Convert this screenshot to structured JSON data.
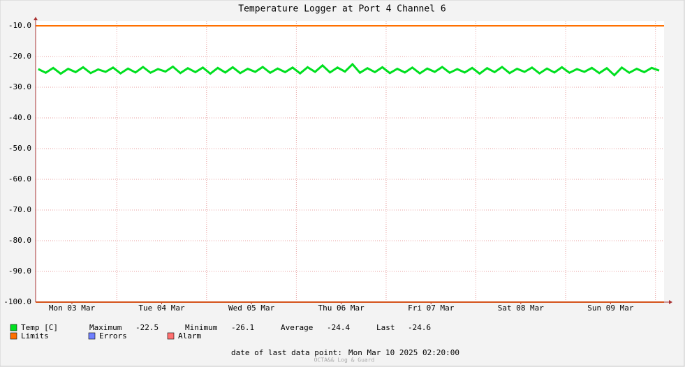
{
  "chart_data": {
    "type": "line",
    "title": "Temperature Logger at Port 4 Channel 6",
    "xlim": [
      2.3,
      170.3
    ],
    "xticks": [
      {
        "value": 12,
        "label": "Mon 03 Mar"
      },
      {
        "value": 36,
        "label": "Tue 04 Mar"
      },
      {
        "value": 60,
        "label": "Wed 05 Mar"
      },
      {
        "value": 84,
        "label": "Thu 06 Mar"
      },
      {
        "value": 108,
        "label": "Fri 07 Mar"
      },
      {
        "value": 132,
        "label": "Sat 08 Mar"
      },
      {
        "value": 156,
        "label": "Sun 09 Mar"
      }
    ],
    "x_major_grid": [
      24,
      48,
      72,
      96,
      120,
      144,
      168
    ],
    "ylim": [
      -100,
      -10
    ],
    "yticks": [
      {
        "value": -10,
        "label": "-10.0"
      },
      {
        "value": -20,
        "label": "-20.0"
      },
      {
        "value": -30,
        "label": "-30.0"
      },
      {
        "value": -40,
        "label": "-40.0"
      },
      {
        "value": -50,
        "label": "-50.0"
      },
      {
        "value": -60,
        "label": "-60.0"
      },
      {
        "value": -70,
        "label": "-70.0"
      },
      {
        "value": -80,
        "label": "-80.0"
      },
      {
        "value": -90,
        "label": "-90.0"
      },
      {
        "value": -100,
        "label": "-100.0"
      }
    ],
    "grid": true,
    "x": [
      3,
      5,
      7,
      9,
      11,
      13,
      15,
      17,
      19,
      21,
      23,
      25,
      27,
      29,
      31,
      33,
      35,
      37,
      39,
      41,
      43,
      45,
      47,
      49,
      51,
      53,
      55,
      57,
      59,
      61,
      63,
      65,
      67,
      69,
      71,
      73,
      75,
      77,
      79,
      81,
      83,
      85,
      87,
      89,
      91,
      93,
      95,
      97,
      99,
      101,
      103,
      105,
      107,
      109,
      111,
      113,
      115,
      117,
      119,
      121,
      123,
      125,
      127,
      129,
      131,
      133,
      135,
      137,
      139,
      141,
      143,
      145,
      147,
      149,
      151,
      153,
      155,
      157,
      159,
      161,
      163,
      165,
      167,
      169
    ],
    "series": [
      {
        "name": "Temp [C]",
        "color": "#00e020",
        "values": [
          -24.1,
          -25.3,
          -23.7,
          -25.6,
          -24.0,
          -25.1,
          -23.5,
          -25.4,
          -24.2,
          -25.0,
          -23.6,
          -25.5,
          -23.9,
          -25.2,
          -23.4,
          -25.3,
          -24.1,
          -24.9,
          -23.3,
          -25.4,
          -23.8,
          -25.1,
          -23.6,
          -25.6,
          -23.7,
          -25.2,
          -23.5,
          -25.4,
          -24.0,
          -25.0,
          -23.4,
          -25.3,
          -23.9,
          -25.1,
          -23.6,
          -25.5,
          -23.5,
          -25.0,
          -22.9,
          -25.2,
          -23.6,
          -24.9,
          -22.5,
          -25.3,
          -23.8,
          -25.1,
          -23.5,
          -25.4,
          -24.0,
          -25.2,
          -23.6,
          -25.5,
          -23.9,
          -25.0,
          -23.4,
          -25.3,
          -24.1,
          -25.2,
          -23.7,
          -25.6,
          -23.8,
          -25.1,
          -23.4,
          -25.4,
          -24.0,
          -25.0,
          -23.6,
          -25.5,
          -23.9,
          -25.2,
          -23.5,
          -25.3,
          -24.1,
          -25.0,
          -23.7,
          -25.4,
          -23.8,
          -26.1,
          -23.6,
          -25.3,
          -24.0,
          -25.1,
          -23.7,
          -24.6
        ]
      }
    ],
    "limits": {
      "name": "Limits",
      "color": "#ff7000",
      "values": [
        -10,
        -100
      ]
    },
    "legend": [
      {
        "name": "Errors",
        "color": "#7080ff"
      },
      {
        "name": "Alarm",
        "color": "#ff7070"
      }
    ],
    "stats": [
      {
        "name": "Maximum",
        "value": -22.5
      },
      {
        "name": "Minimum",
        "value": -26.1
      },
      {
        "name": "Average",
        "value": -24.4
      },
      {
        "name": "Last",
        "value": -24.6
      }
    ],
    "footer": {
      "label": "date of last data point:",
      "date": "Mon Mar 10 2025 02:20:00"
    },
    "watermark": "OCTA&& Log & Guard"
  }
}
